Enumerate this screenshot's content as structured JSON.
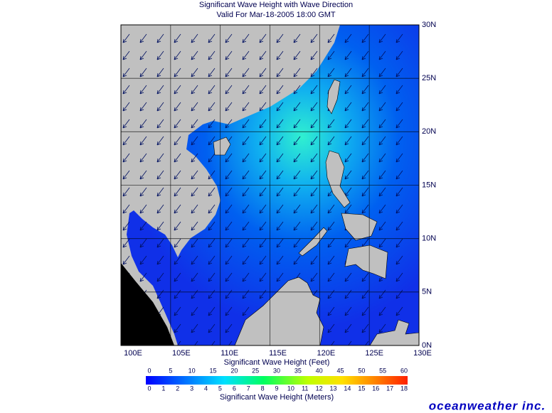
{
  "header": {
    "title": "Significant Wave Height with Wave Direction",
    "subtitle": "Valid For Mar-18-2005 18:00 GMT"
  },
  "map": {
    "lon_labels": [
      "100E",
      "105E",
      "110E",
      "115E",
      "120E",
      "125E",
      "130E"
    ],
    "lat_labels": [
      "0N",
      "5N",
      "10N",
      "15N",
      "20N",
      "25N",
      "30N"
    ]
  },
  "colorbar": {
    "feet_title": "Significant Wave Height (Feet)",
    "feet_ticks": [
      0,
      5,
      10,
      15,
      20,
      25,
      30,
      35,
      40,
      45,
      50,
      55,
      60
    ],
    "meters_title": "Significant Wave Height (Meters)",
    "meters_ticks": [
      0,
      1,
      2,
      3,
      4,
      5,
      6,
      7,
      8,
      9,
      10,
      11,
      12,
      13,
      14,
      15,
      16,
      17,
      18
    ]
  },
  "logo": "oceanweather inc."
}
